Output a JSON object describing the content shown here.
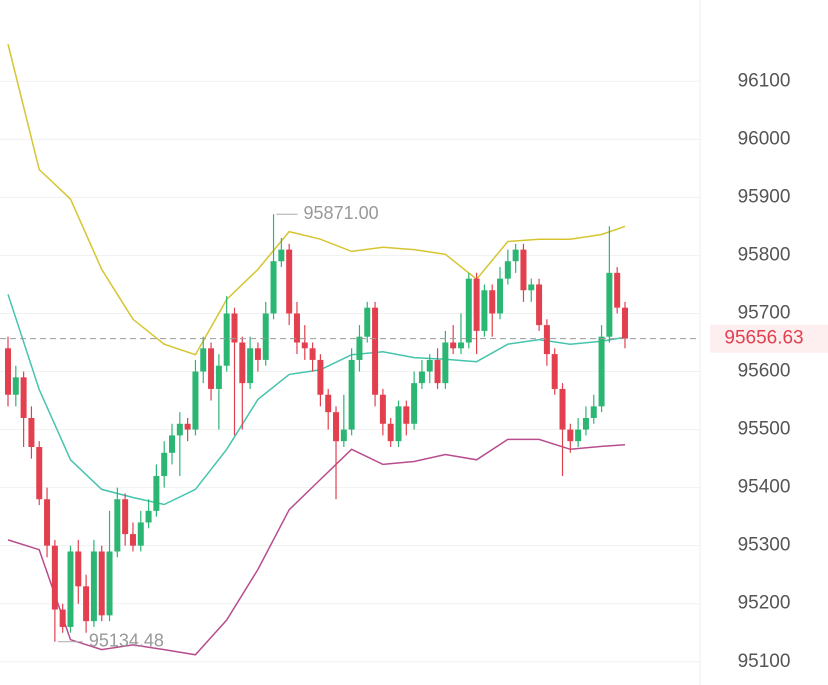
{
  "chart_data": {
    "type": "candlestick",
    "ylim": [
      95060,
      96240
    ],
    "yticks": [
      95100,
      95200,
      95300,
      95400,
      95500,
      95600,
      95700,
      95800,
      95900,
      96000,
      96100
    ],
    "grid": true,
    "up_color": "#2bb673",
    "down_color": "#e3404f",
    "open": [
      95640,
      95560,
      95590,
      95520,
      95470,
      95380,
      95300,
      95190,
      95160,
      95290,
      95230,
      95170,
      95290,
      95180,
      95290,
      95380,
      95320,
      95300,
      95340,
      95360,
      95420,
      95460,
      95490,
      95510,
      95500,
      95600,
      95640,
      95570,
      95610,
      95700,
      95650,
      95580,
      95640,
      95620,
      95700,
      95790,
      95810,
      95700,
      95650,
      95640,
      95620,
      95560,
      95530,
      95480,
      95500,
      95620,
      95660,
      95710,
      95560,
      95510,
      95480,
      95540,
      95510,
      95580,
      95600,
      95620,
      95580,
      95650,
      95640,
      95650,
      95760,
      95670,
      95740,
      95700,
      95760,
      95790,
      95810,
      95740,
      95750,
      95680,
      95630,
      95570,
      95500,
      95480,
      95500,
      95520,
      95540,
      95660,
      95770,
      95710
    ],
    "high": [
      95660,
      95610,
      95600,
      95540,
      95480,
      95400,
      95310,
      95200,
      95300,
      95310,
      95250,
      95310,
      95300,
      95360,
      95400,
      95390,
      95340,
      95360,
      95380,
      95440,
      95480,
      95510,
      95530,
      95520,
      95620,
      95660,
      95650,
      95630,
      95730,
      95710,
      95660,
      95660,
      95650,
      95720,
      95871,
      95830,
      95820,
      95720,
      95680,
      95650,
      95630,
      95570,
      95540,
      95560,
      95640,
      95680,
      95720,
      95720,
      95570,
      95520,
      95550,
      95550,
      95600,
      95620,
      95630,
      95640,
      95670,
      95680,
      95700,
      95770,
      95770,
      95750,
      95750,
      95780,
      95810,
      95820,
      95820,
      95760,
      95760,
      95690,
      95640,
      95580,
      95510,
      95520,
      95540,
      95560,
      95680,
      95850,
      95780,
      95720
    ],
    "low": [
      95540,
      95540,
      95470,
      95450,
      95370,
      95280,
      95134.48,
      95150,
      95150,
      95200,
      95150,
      95160,
      95170,
      95170,
      95280,
      95300,
      95290,
      95290,
      95330,
      95350,
      95400,
      95440,
      95420,
      95480,
      95490,
      95580,
      95550,
      95500,
      95600,
      95490,
      95500,
      95570,
      95600,
      95610,
      95690,
      95780,
      95680,
      95630,
      95620,
      95600,
      95540,
      95500,
      95380,
      95470,
      95490,
      95600,
      95650,
      95540,
      95490,
      95470,
      95470,
      95490,
      95500,
      95570,
      95580,
      95570,
      95570,
      95630,
      95630,
      95640,
      95630,
      95660,
      95660,
      95690,
      95750,
      95770,
      95720,
      95720,
      95670,
      95610,
      95560,
      95420,
      95460,
      95470,
      95490,
      95510,
      95530,
      95650,
      95700,
      95640
    ],
    "close": [
      95560,
      95590,
      95520,
      95470,
      95380,
      95300,
      95190,
      95160,
      95290,
      95230,
      95170,
      95290,
      95180,
      95290,
      95380,
      95320,
      95300,
      95340,
      95360,
      95420,
      95460,
      95490,
      95510,
      95500,
      95600,
      95640,
      95570,
      95610,
      95700,
      95650,
      95580,
      95640,
      95620,
      95700,
      95790,
      95810,
      95700,
      95650,
      95640,
      95620,
      95560,
      95530,
      95480,
      95500,
      95620,
      95660,
      95710,
      95560,
      95510,
      95480,
      95540,
      95510,
      95580,
      95600,
      95620,
      95580,
      95650,
      95640,
      95650,
      95760,
      95670,
      95740,
      95700,
      95760,
      95790,
      95810,
      95740,
      95750,
      95680,
      95630,
      95570,
      95500,
      95480,
      95500,
      95520,
      95540,
      95660,
      95770,
      95710,
      95656.63
    ],
    "bands": {
      "x": [
        0,
        4,
        8,
        12,
        16,
        20,
        24,
        28,
        32,
        36,
        40,
        44,
        48,
        52,
        56,
        60,
        64,
        68,
        72,
        76,
        79
      ],
      "upper_color": "#d6c530",
      "middle_color": "#45c4ad",
      "lower_color": "#b84d8e",
      "upper": [
        96164,
        95948,
        95897,
        95776,
        95690,
        95647,
        95629,
        95724,
        95776,
        95841,
        95828,
        95807,
        95814,
        95810,
        95802,
        95759,
        95824,
        95828,
        95828,
        95836,
        95850
      ],
      "middle": [
        95733,
        95569,
        95448,
        95397,
        95383,
        95371,
        95397,
        95466,
        95552,
        95595,
        95603,
        95629,
        95634,
        95624,
        95621,
        95617,
        95647,
        95655,
        95647,
        95652,
        95659
      ],
      "lower": [
        95310,
        95293,
        95138,
        95121,
        95129,
        95121,
        95112,
        95172,
        95259,
        95362,
        95414,
        95466,
        95440,
        95445,
        95457,
        95448,
        95483,
        95483,
        95466,
        95471,
        95474
      ]
    },
    "max_annotation": {
      "index": 34,
      "price": {
        "value": 95871,
        "label": "95871.00"
      }
    },
    "min_annotation": {
      "index": 6,
      "price": {
        "value": 95134.48,
        "label": "95134.48"
      }
    },
    "last_price": 95656.63
  }
}
